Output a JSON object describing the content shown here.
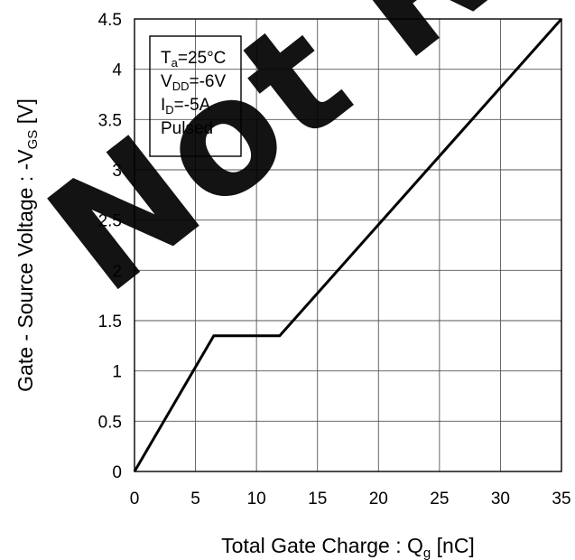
{
  "chart_data": {
    "type": "line",
    "title": "",
    "xlabel": {
      "main": "Total Gate Charge : Q",
      "sub": "g",
      "unit": " [nC]"
    },
    "ylabel": {
      "main": "Gate - Source Voltage : -V",
      "sub": "GS",
      "unit": " [V]"
    },
    "xlim": [
      0,
      35
    ],
    "ylim": [
      0,
      4.5
    ],
    "xticks": [
      0,
      5,
      10,
      15,
      20,
      25,
      30,
      35
    ],
    "yticks": [
      0,
      0.5,
      1,
      1.5,
      2,
      2.5,
      3,
      3.5,
      4,
      4.5
    ],
    "xtick_labels": [
      "0",
      "5",
      "10",
      "15",
      "20",
      "25",
      "30",
      "35"
    ],
    "ytick_labels": [
      "0",
      "0.5",
      "1",
      "1.5",
      "2",
      "2.5",
      "3",
      "3.5",
      "4",
      "4.5"
    ],
    "grid": true,
    "series": [
      {
        "x": [
          0,
          6.5,
          11.9,
          35
        ],
        "y": [
          0,
          1.35,
          1.35,
          4.5
        ]
      }
    ],
    "conditions": [
      {
        "main": "T",
        "sub": "a",
        "rest": "=25°C"
      },
      {
        "main": "V",
        "sub": "DD",
        "rest": "=-6V"
      },
      {
        "main": "I",
        "sub": "D",
        "rest": "=-5A"
      },
      {
        "main": "Pulsed",
        "sub": "",
        "rest": ""
      }
    ],
    "watermark": "Not Recommended for New Designs"
  }
}
